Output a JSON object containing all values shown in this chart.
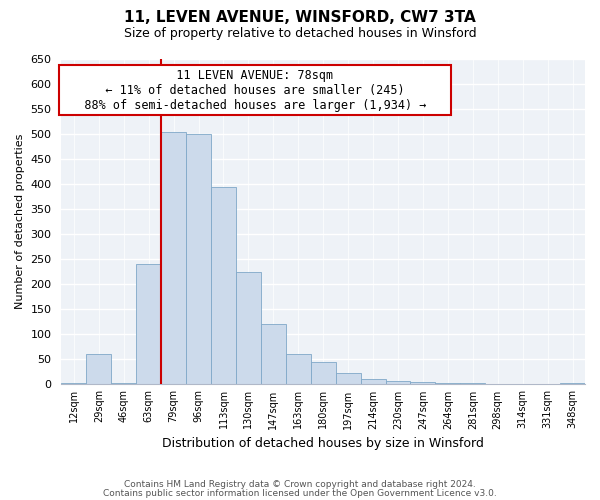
{
  "title": "11, LEVEN AVENUE, WINSFORD, CW7 3TA",
  "subtitle": "Size of property relative to detached houses in Winsford",
  "xlabel": "Distribution of detached houses by size in Winsford",
  "ylabel": "Number of detached properties",
  "bar_labels": [
    "12sqm",
    "29sqm",
    "46sqm",
    "63sqm",
    "79sqm",
    "96sqm",
    "113sqm",
    "130sqm",
    "147sqm",
    "163sqm",
    "180sqm",
    "197sqm",
    "214sqm",
    "230sqm",
    "247sqm",
    "264sqm",
    "281sqm",
    "298sqm",
    "314sqm",
    "331sqm",
    "348sqm"
  ],
  "bar_values": [
    2,
    60,
    3,
    240,
    505,
    500,
    395,
    225,
    120,
    60,
    45,
    22,
    10,
    7,
    5,
    3,
    2,
    0,
    0,
    0,
    2
  ],
  "bar_color": "#ccdaeb",
  "bar_edge_color": "#7fa8c8",
  "ylim": [
    0,
    650
  ],
  "yticks": [
    0,
    50,
    100,
    150,
    200,
    250,
    300,
    350,
    400,
    450,
    500,
    550,
    600,
    650
  ],
  "property_bar_index": 4,
  "property_line_color": "#cc0000",
  "annotation_title": "11 LEVEN AVENUE: 78sqm",
  "annotation_line1": "← 11% of detached houses are smaller (245)",
  "annotation_line2": "88% of semi-detached houses are larger (1,934) →",
  "annotation_box_color": "#ffffff",
  "annotation_box_edge": "#cc0000",
  "footnote1": "Contains HM Land Registry data © Crown copyright and database right 2024.",
  "footnote2": "Contains public sector information licensed under the Open Government Licence v3.0.",
  "bg_color": "#eef2f7",
  "grid_color": "#ffffff",
  "spine_color": "#b0b8c8"
}
